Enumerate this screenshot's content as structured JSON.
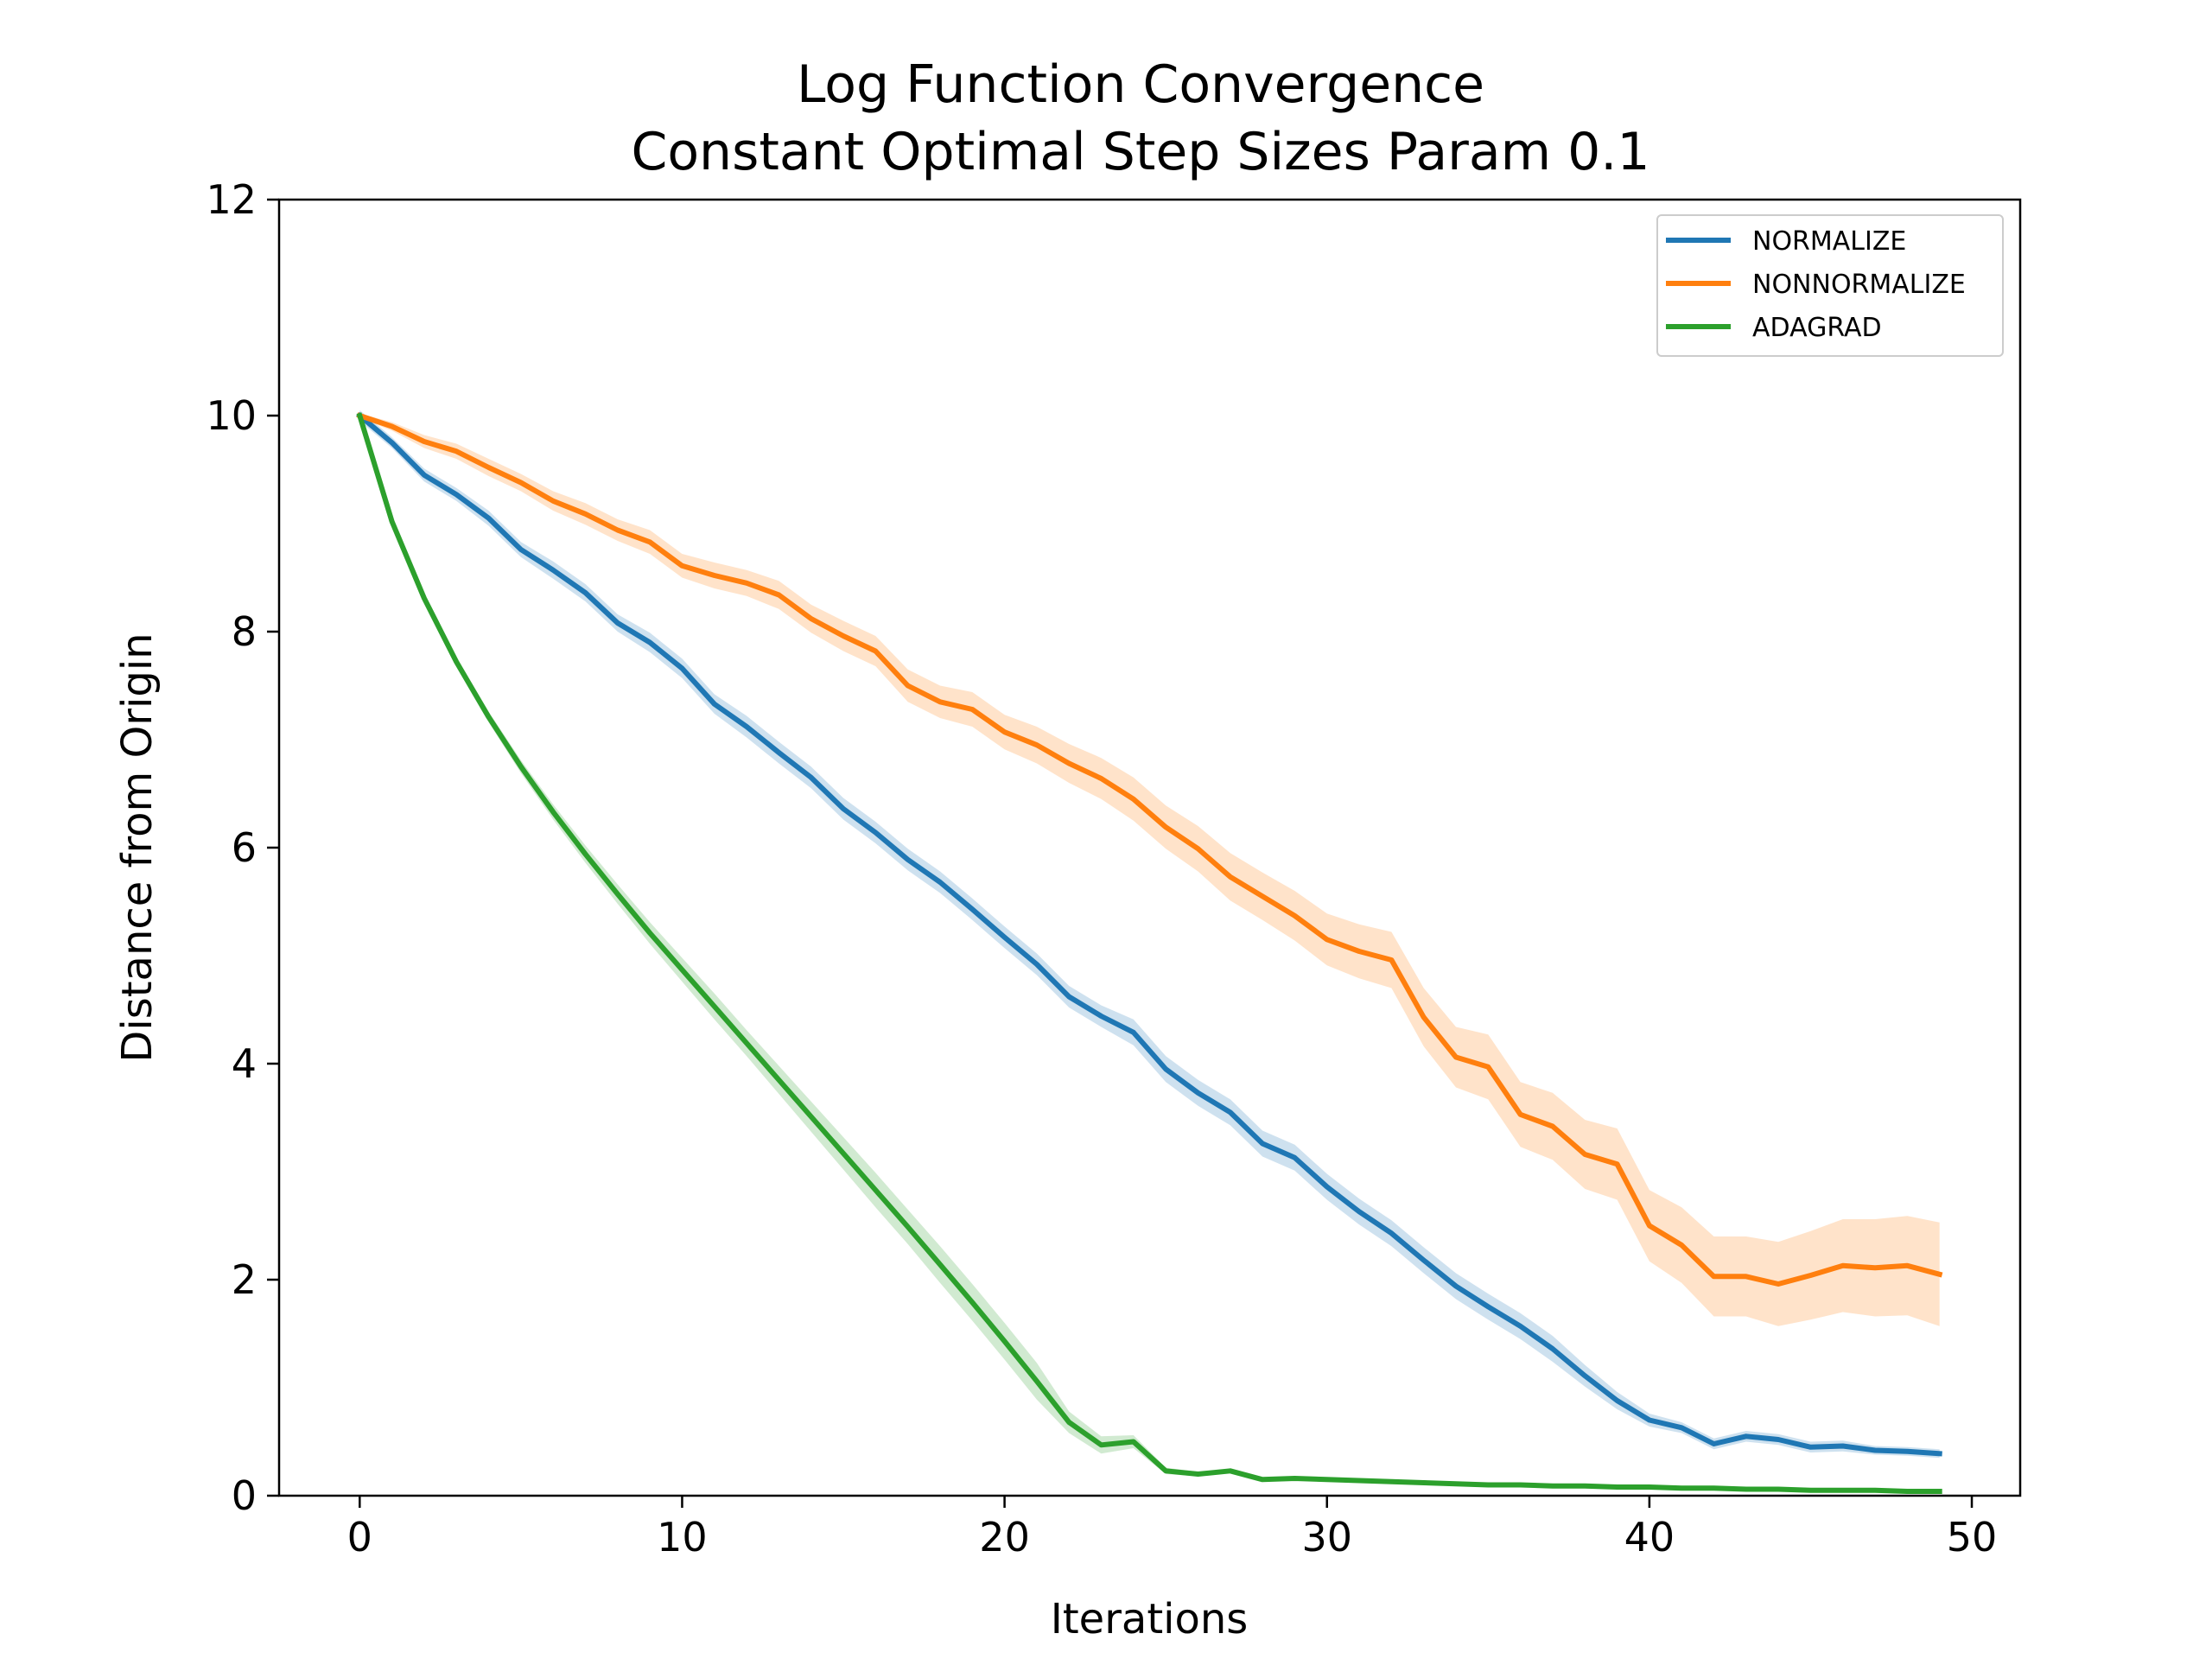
{
  "chart_data": {
    "type": "line",
    "title": "Log Function Convergence",
    "subtitle": "Constant Optimal Step Sizes Param 0.1",
    "xlabel": "Iterations",
    "ylabel": "Distance from Origin",
    "xlim": [
      -2.5,
      51.5
    ],
    "ylim": [
      0,
      12
    ],
    "xticks": [
      "0",
      "10",
      "20",
      "30",
      "40",
      "50"
    ],
    "yticks": [
      "0",
      "2",
      "4",
      "6",
      "8",
      "10",
      "12"
    ],
    "grid": false,
    "legend_position": "top-right",
    "x": [
      0,
      1,
      2,
      3,
      4,
      5,
      6,
      7,
      8,
      9,
      10,
      11,
      12,
      13,
      14,
      15,
      16,
      17,
      18,
      19,
      20,
      21,
      22,
      23,
      24,
      25,
      26,
      27,
      28,
      29,
      30,
      31,
      32,
      33,
      34,
      35,
      36,
      37,
      38,
      39,
      40,
      41,
      42,
      43,
      44,
      45,
      46,
      47,
      48,
      49
    ],
    "series": [
      {
        "name": "NORMALIZE",
        "color": "#1f77b4",
        "values": [
          10.0,
          9.75,
          9.45,
          9.27,
          9.05,
          8.76,
          8.57,
          8.36,
          8.08,
          7.9,
          7.66,
          7.33,
          7.12,
          6.88,
          6.65,
          6.36,
          6.14,
          5.89,
          5.68,
          5.43,
          5.17,
          4.92,
          4.62,
          4.44,
          4.29,
          3.95,
          3.73,
          3.55,
          3.26,
          3.13,
          2.86,
          2.63,
          2.43,
          2.18,
          1.94,
          1.75,
          1.57,
          1.36,
          1.11,
          0.88,
          0.7,
          0.63,
          0.48,
          0.55,
          0.52,
          0.45,
          0.46,
          0.42,
          0.41,
          0.39
        ],
        "band": [
          0.05,
          0.05,
          0.06,
          0.06,
          0.07,
          0.07,
          0.08,
          0.08,
          0.08,
          0.09,
          0.09,
          0.09,
          0.1,
          0.1,
          0.1,
          0.1,
          0.1,
          0.1,
          0.1,
          0.1,
          0.1,
          0.1,
          0.1,
          0.1,
          0.12,
          0.12,
          0.12,
          0.12,
          0.12,
          0.12,
          0.12,
          0.12,
          0.12,
          0.12,
          0.12,
          0.12,
          0.12,
          0.12,
          0.1,
          0.08,
          0.06,
          0.05,
          0.05,
          0.05,
          0.05,
          0.05,
          0.05,
          0.04,
          0.04,
          0.04
        ]
      },
      {
        "name": "NONNORMALIZE",
        "color": "#ff7f0e",
        "values": [
          10.0,
          9.9,
          9.76,
          9.67,
          9.52,
          9.38,
          9.21,
          9.09,
          8.94,
          8.83,
          8.61,
          8.52,
          8.45,
          8.34,
          8.12,
          7.96,
          7.82,
          7.5,
          7.35,
          7.28,
          7.07,
          6.95,
          6.78,
          6.64,
          6.45,
          6.19,
          5.99,
          5.73,
          5.55,
          5.37,
          5.15,
          5.04,
          4.96,
          4.43,
          4.06,
          3.97,
          3.53,
          3.42,
          3.16,
          3.07,
          2.5,
          2.32,
          2.03,
          2.03,
          1.96,
          2.04,
          2.13,
          2.11,
          2.13,
          2.05
        ],
        "band": [
          0.02,
          0.04,
          0.06,
          0.07,
          0.08,
          0.08,
          0.09,
          0.1,
          0.1,
          0.11,
          0.11,
          0.12,
          0.12,
          0.13,
          0.13,
          0.14,
          0.14,
          0.15,
          0.15,
          0.16,
          0.16,
          0.17,
          0.18,
          0.19,
          0.2,
          0.2,
          0.21,
          0.22,
          0.22,
          0.23,
          0.24,
          0.25,
          0.26,
          0.27,
          0.28,
          0.3,
          0.3,
          0.31,
          0.32,
          0.33,
          0.33,
          0.35,
          0.37,
          0.37,
          0.39,
          0.41,
          0.43,
          0.45,
          0.46,
          0.48
        ]
      },
      {
        "name": "ADAGRAD",
        "color": "#2ca02c",
        "values": [
          10.0,
          9.02,
          8.31,
          7.72,
          7.21,
          6.75,
          6.33,
          5.94,
          5.57,
          5.21,
          4.87,
          4.53,
          4.19,
          3.85,
          3.51,
          3.17,
          2.83,
          2.49,
          2.14,
          1.79,
          1.43,
          1.06,
          0.68,
          0.47,
          0.5,
          0.23,
          0.2,
          0.23,
          0.15,
          0.16,
          0.15,
          0.14,
          0.13,
          0.12,
          0.11,
          0.1,
          0.1,
          0.09,
          0.09,
          0.08,
          0.08,
          0.07,
          0.07,
          0.06,
          0.06,
          0.05,
          0.05,
          0.05,
          0.04,
          0.04
        ],
        "band": [
          0.0,
          0.02,
          0.03,
          0.04,
          0.05,
          0.06,
          0.07,
          0.08,
          0.09,
          0.1,
          0.11,
          0.12,
          0.12,
          0.13,
          0.14,
          0.15,
          0.16,
          0.16,
          0.17,
          0.17,
          0.17,
          0.17,
          0.1,
          0.08,
          0.06,
          0.03,
          0.02,
          0.02,
          0.01,
          0.01,
          0.01,
          0.01,
          0.01,
          0.01,
          0.01,
          0.01,
          0.01,
          0.01,
          0.01,
          0.01,
          0.01,
          0.01,
          0.01,
          0.01,
          0.01,
          0.01,
          0.01,
          0.01,
          0.01,
          0.01
        ]
      }
    ]
  }
}
